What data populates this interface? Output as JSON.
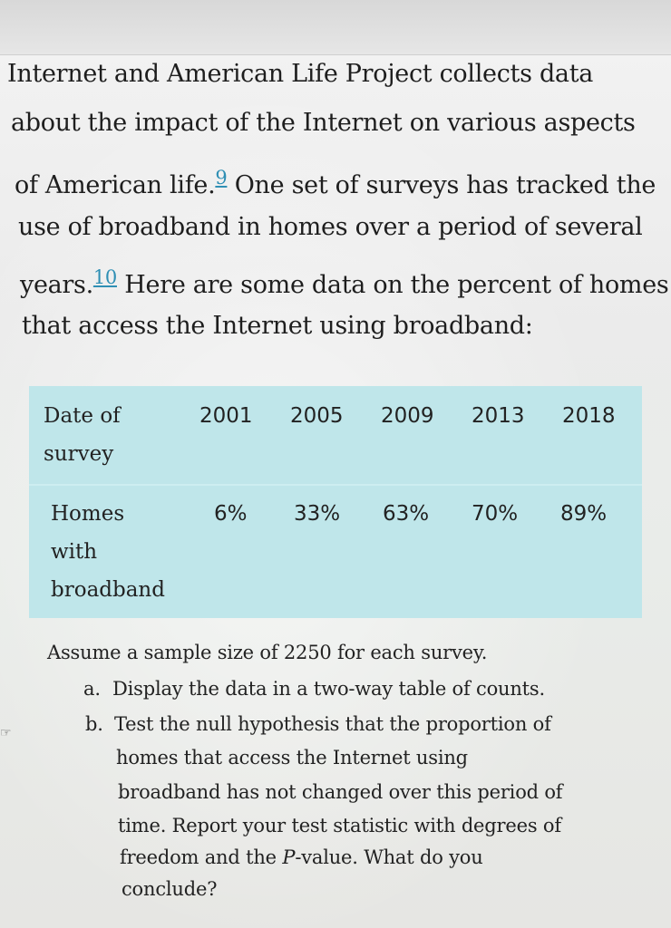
{
  "paragraph": {
    "line1": "Internet and American Life Project collects data",
    "line2": "about the impact of the Internet on various aspects",
    "line3_pre": "of American life.",
    "line3_fn": "9",
    "line3_post": " One set of surveys has tracked the",
    "line4": "use of broadband in homes over a period of several",
    "line5_pre": "years.",
    "line5_fn": "10",
    "line5_post": " Here are some data on the percent of homes",
    "line6": "that access the Internet using broadband:"
  },
  "table": {
    "header_label_line1": "Date of",
    "header_label_line2": "survey",
    "years": [
      "2001",
      "2005",
      "2009",
      "2013",
      "2018"
    ],
    "row_label_line1": "Homes",
    "row_label_line2": "with",
    "row_label_line3": "broadband",
    "percents": [
      "6%",
      "33%",
      "63%",
      "70%",
      "89%"
    ],
    "colors": {
      "background": "#bfe6ea"
    }
  },
  "questions": {
    "intro": "Assume a sample size of 2250 for each survey.",
    "a_label": "a.",
    "a_text": "Display the data in a two-way table of counts.",
    "b_label": "b.",
    "b_line1": "Test the null hypothesis that the proportion of",
    "b_line2": "homes that access the Internet using",
    "b_line3": "broadband has not changed over this period of",
    "b_line4": "time. Report your test statistic with degrees of",
    "b_line5_pre": "freedom and the ",
    "b_line5_ital": "P",
    "b_line5_post": "-value. What do you",
    "b_line6": "conclude?"
  },
  "icons": {
    "margin_icon": "hand-pointer-icon"
  }
}
